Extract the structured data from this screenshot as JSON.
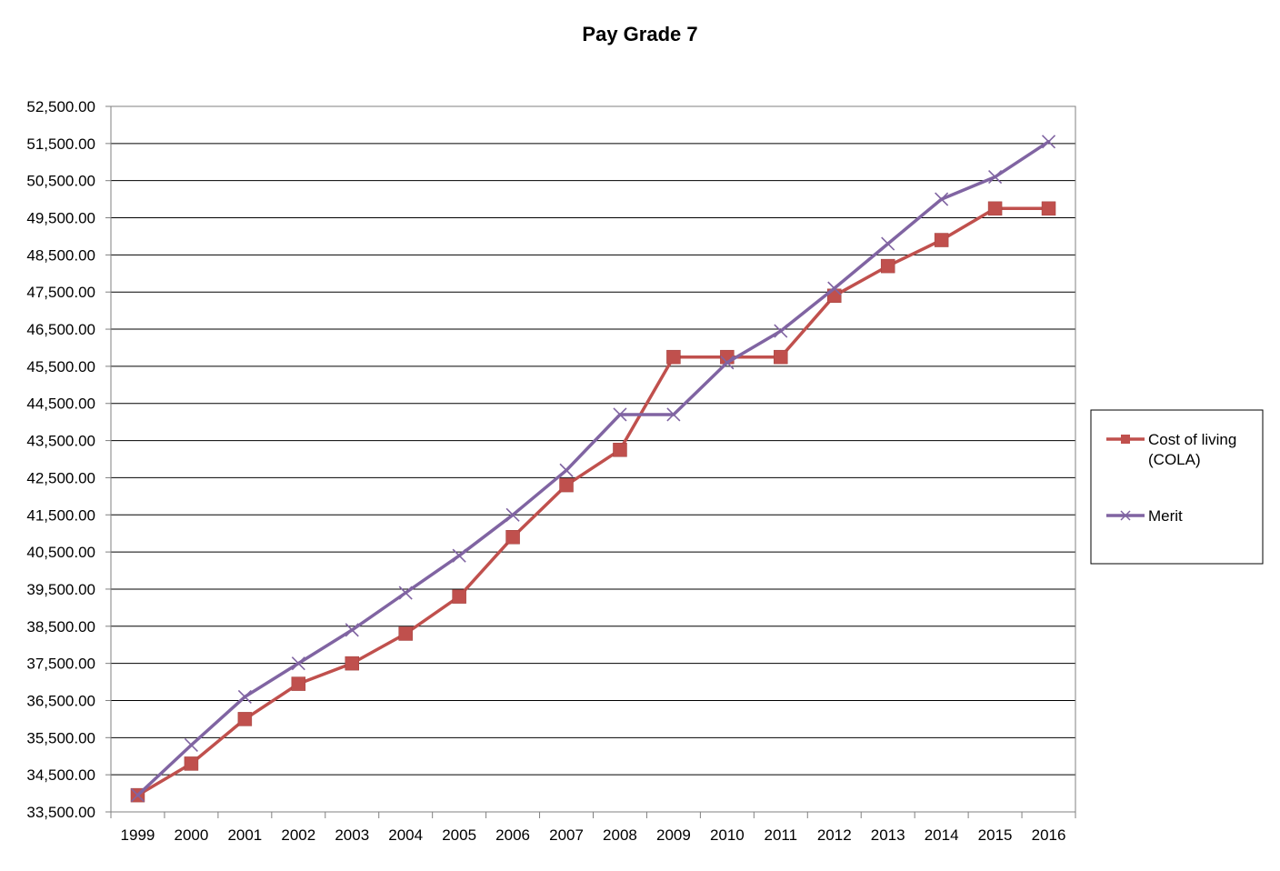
{
  "chart_data": {
    "type": "line",
    "title": "Pay Grade 7",
    "xlabel": "",
    "ylabel": "",
    "categories": [
      "1999",
      "2000",
      "2001",
      "2002",
      "2003",
      "2004",
      "2005",
      "2006",
      "2007",
      "2008",
      "2009",
      "2010",
      "2011",
      "2012",
      "2013",
      "2014",
      "2015",
      "2016"
    ],
    "ylim": [
      33500,
      52500
    ],
    "ytick_step": 1000,
    "ytick_labels": [
      "33,500.00",
      "34,500.00",
      "35,500.00",
      "36,500.00",
      "37,500.00",
      "38,500.00",
      "39,500.00",
      "40,500.00",
      "41,500.00",
      "42,500.00",
      "43,500.00",
      "44,500.00",
      "45,500.00",
      "46,500.00",
      "47,500.00",
      "48,500.00",
      "49,500.00",
      "50,500.00",
      "51,500.00",
      "52,500.00"
    ],
    "grid": true,
    "legend_position": "right",
    "series": [
      {
        "name": "Cost of living (COLA)",
        "legend_lines": [
          "Cost of living",
          "(COLA)"
        ],
        "color": "#C0504D",
        "marker": "square",
        "values": [
          33950,
          34800,
          36000,
          36950,
          37500,
          38300,
          39300,
          40900,
          42300,
          43250,
          45750,
          45750,
          45750,
          47400,
          48200,
          48900,
          49750,
          49750
        ]
      },
      {
        "name": "Merit",
        "legend_lines": [
          "Merit"
        ],
        "color": "#8064A2",
        "marker": "x",
        "values": [
          33950,
          35300,
          36600,
          37500,
          38400,
          39400,
          40400,
          41500,
          42700,
          44200,
          44200,
          45600,
          46450,
          47600,
          48800,
          50000,
          50600,
          51550
        ]
      }
    ]
  }
}
